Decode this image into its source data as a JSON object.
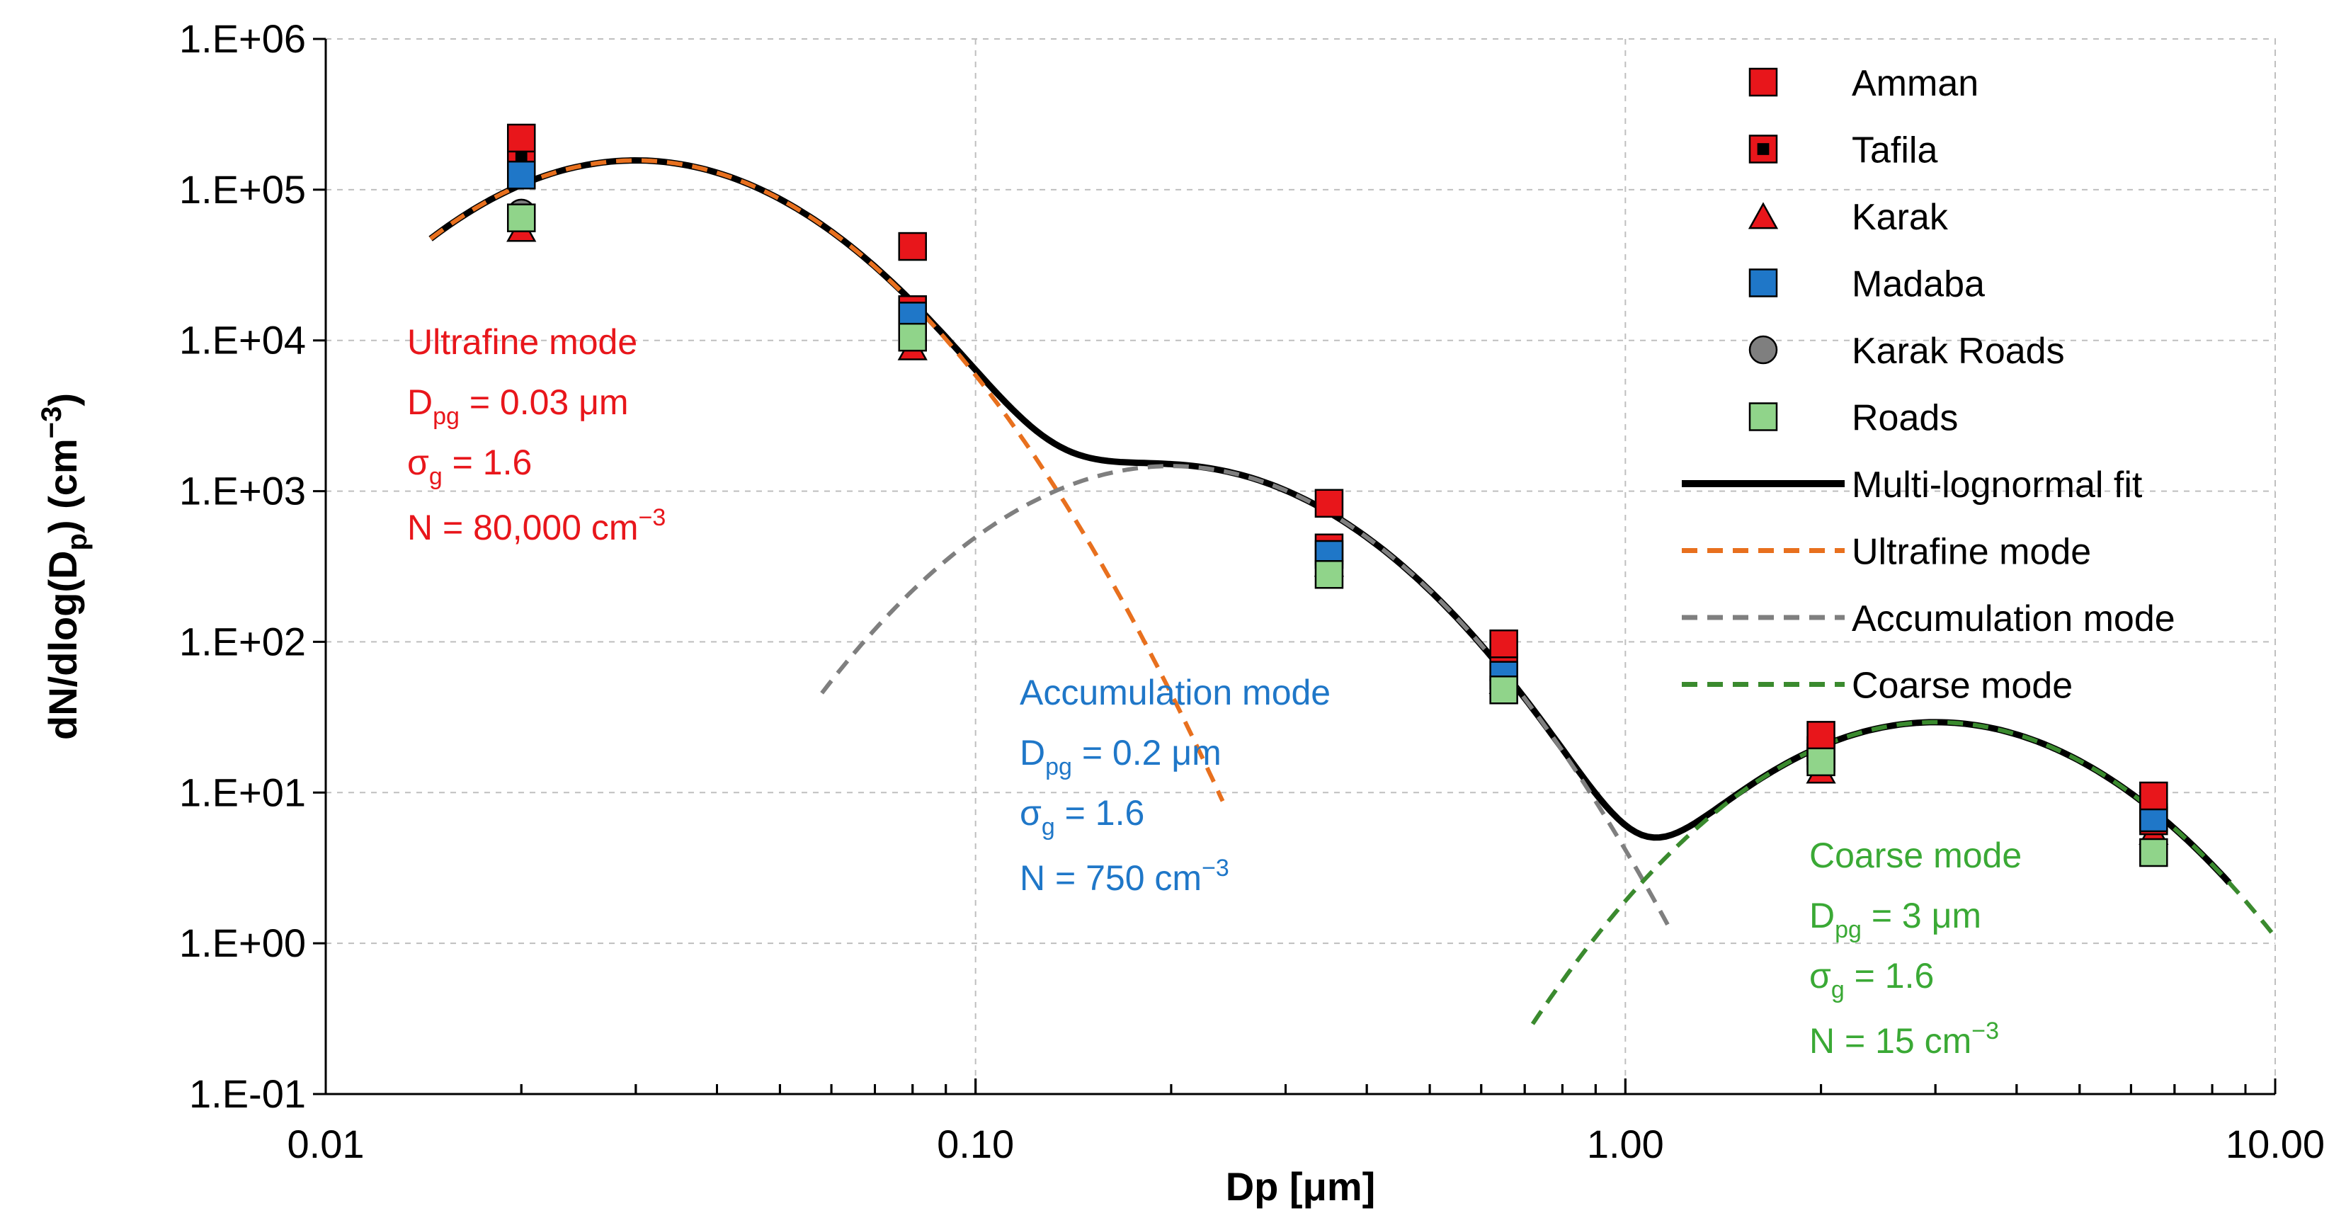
{
  "chart_data": {
    "type": "scatter",
    "x_scale": "log",
    "y_scale": "log",
    "xlim": [
      0.01,
      10
    ],
    "ylim": [
      0.1,
      1000000
    ],
    "x_ticks": [
      0.01,
      0.1,
      1,
      10
    ],
    "x_tick_labels": [
      "0.01",
      "0.10",
      "1.00",
      "10.00"
    ],
    "y_ticks": [
      0.1,
      1,
      10,
      100,
      1000,
      10000,
      100000,
      1000000
    ],
    "y_tick_labels": [
      "1.E-01",
      "1.E+00",
      "1.E+01",
      "1.E+02",
      "1.E+03",
      "1.E+04",
      "1.E+05",
      "1.E+06"
    ],
    "xlabel": "Dp [μm]",
    "ylabel": {
      "main": "dN/dlog(D",
      "sub": "p",
      "end": ") (cm",
      "sup": "−3",
      "close": ")"
    },
    "grid": true,
    "legend_position": "top-right",
    "series": [
      {
        "name": "Amman",
        "marker": "square",
        "color": "#e8161b",
        "x": [
          0.02,
          0.08,
          0.35,
          0.65,
          2.0,
          6.5
        ],
        "y": [
          220000,
          42000,
          830,
          97,
          24,
          9.5
        ]
      },
      {
        "name": "Tafila",
        "marker": "square-dot",
        "color": "#e8161b",
        "x": [
          0.02,
          0.08,
          0.35,
          0.65,
          2.0,
          6.5
        ],
        "y": [
          170000,
          16000,
          420,
          68,
          17,
          6.5
        ]
      },
      {
        "name": "Karak",
        "marker": "triangle",
        "color": "#e8161b",
        "x": [
          0.02,
          0.08,
          0.35,
          0.65,
          2.0,
          6.5
        ],
        "y": [
          55000,
          9000,
          330,
          55,
          14,
          5.5
        ]
      },
      {
        "name": "Madaba",
        "marker": "square",
        "color": "#1f77c8",
        "x": [
          0.02,
          0.08,
          0.35,
          0.65,
          2.0,
          6.5
        ],
        "y": [
          125000,
          14500,
          380,
          60,
          19,
          6.8
        ]
      },
      {
        "name": "Karak Roads",
        "marker": "circle",
        "color": "#7f7f7f",
        "x": [
          0.02,
          0.08,
          0.35,
          0.65,
          2.0,
          6.5
        ],
        "y": [
          70000,
          11500,
          330,
          56,
          21,
          7.5
        ]
      },
      {
        "name": "Roads",
        "marker": "square",
        "color": "#90d48a",
        "x": [
          0.02,
          0.08,
          0.35,
          0.65,
          2.0,
          6.5
        ],
        "y": [
          65000,
          10500,
          280,
          48,
          16,
          4.0
        ]
      }
    ],
    "modes": [
      {
        "name": "Ultrafine mode",
        "dpg": 0.03,
        "sigma_g": 1.6,
        "n": 80000,
        "color": "#e8701e",
        "x_range": [
          0.0145,
          0.24
        ]
      },
      {
        "name": "Accumulation mode",
        "dpg": 0.2,
        "sigma_g": 1.6,
        "n": 750,
        "color": "#7f7f7f",
        "x_range": [
          0.058,
          1.18
        ]
      },
      {
        "name": "Coarse mode",
        "dpg": 3,
        "sigma_g": 1.6,
        "n": 15,
        "color": "#3a8a2e",
        "x_range": [
          0.72,
          10
        ]
      }
    ],
    "fit": {
      "name": "Multi-lognormal fit",
      "color": "#000000",
      "x_range": [
        0.0145,
        8.5
      ]
    },
    "legend": [
      "Amman",
      "Tafila",
      "Karak",
      "Madaba",
      "Karak Roads",
      "Roads",
      "Multi-lognormal fit",
      "Ultrafine mode",
      "Accumulation mode",
      "Coarse mode"
    ],
    "annotations": [
      {
        "title": "Ultrafine mode",
        "color": "#e8161b",
        "dpg_label": "D",
        "dpg_sub": "pg",
        "dpg_value": " = 0.03 μm",
        "sigma_label": "σ",
        "sigma_sub": "g",
        "sigma_value": " =  1.6",
        "n_label": "N = 80,000 cm",
        "n_sup": "−3"
      },
      {
        "title": "Accumulation mode",
        "color": "#1f77c8",
        "dpg_label": "D",
        "dpg_sub": "pg",
        "dpg_value": " = 0.2 μm",
        "sigma_label": "σ",
        "sigma_sub": "g",
        "sigma_value": " =  1.6",
        "n_label": "N = 750 cm",
        "n_sup": "−3"
      },
      {
        "title": "Coarse mode",
        "color": "#3aa935",
        "dpg_label": "D",
        "dpg_sub": "pg",
        "dpg_value": " = 3 μm",
        "sigma_label": "σ",
        "sigma_sub": "g",
        "sigma_value": " =  1.6",
        "n_label": "N = 15 cm",
        "n_sup": "−3"
      }
    ]
  }
}
